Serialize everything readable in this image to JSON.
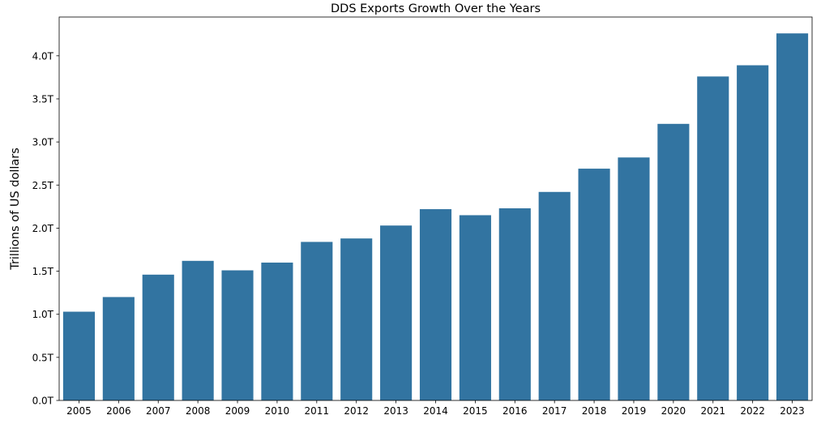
{
  "chart_data": {
    "type": "bar",
    "title": "DDS Exports Growth Over the Years",
    "xlabel": "",
    "ylabel": "Trillions of US dollars",
    "categories": [
      "2005",
      "2006",
      "2007",
      "2008",
      "2009",
      "2010",
      "2011",
      "2012",
      "2013",
      "2014",
      "2015",
      "2016",
      "2017",
      "2018",
      "2019",
      "2020",
      "2021",
      "2022",
      "2023"
    ],
    "values": [
      1.03,
      1.2,
      1.46,
      1.62,
      1.51,
      1.6,
      1.84,
      1.88,
      2.03,
      2.22,
      2.15,
      2.23,
      2.42,
      2.69,
      2.82,
      3.21,
      3.76,
      3.89,
      4.26
    ],
    "ylim": [
      0,
      4.45
    ],
    "yticks": [
      0,
      0.5,
      1.0,
      1.5,
      2.0,
      2.5,
      3.0,
      3.5,
      4.0
    ],
    "ytick_labels": [
      "0.0T",
      "0.5T",
      "1.0T",
      "1.5T",
      "2.0T",
      "2.5T",
      "3.0T",
      "3.5T",
      "4.0T"
    ],
    "bar_color": "#3274a1",
    "grid": false
  }
}
